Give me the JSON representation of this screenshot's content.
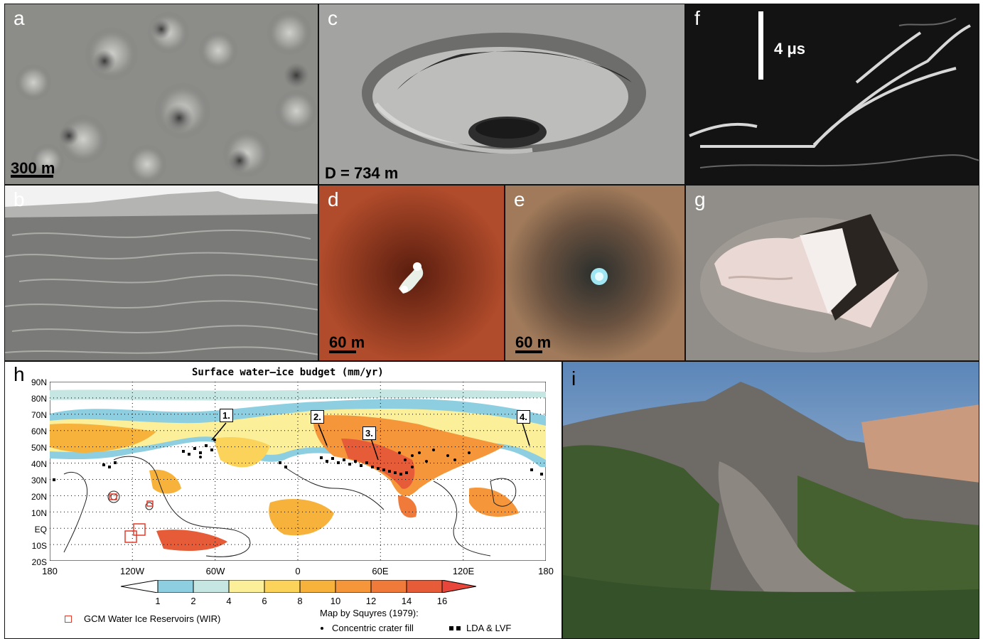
{
  "panels": {
    "a": {
      "label": "a",
      "scale": "300 m"
    },
    "b": {
      "label": "b"
    },
    "c": {
      "label": "c",
      "scale": "D = 734 m"
    },
    "d": {
      "label": "d",
      "scale": "60 m"
    },
    "e": {
      "label": "e",
      "scale": "60 m"
    },
    "f": {
      "label": "f",
      "scale": "4 μs"
    },
    "g": {
      "label": "g"
    },
    "h": {
      "label": "h"
    },
    "i": {
      "label": "i"
    }
  },
  "map": {
    "title": "Surface water–ice budget (mm/yr)",
    "lat_labels": [
      "90N",
      "80N",
      "70N",
      "60N",
      "50N",
      "40N",
      "30N",
      "20N",
      "10N",
      "EQ",
      "10S",
      "20S"
    ],
    "lon_labels": [
      "180",
      "120W",
      "60W",
      "0",
      "60E",
      "120E",
      "180"
    ],
    "colorbar_ticks": [
      "1",
      "2",
      "4",
      "6",
      "8",
      "10",
      "12",
      "14",
      "16"
    ],
    "colorbar_colors": [
      "#8dcfe0",
      "#c5e6e2",
      "#fbef9a",
      "#fbd35a",
      "#f7b23b",
      "#f5963a",
      "#ef7a3a",
      "#e65c38"
    ],
    "callouts": [
      "1.",
      "2.",
      "3.",
      "4."
    ],
    "legend": {
      "wir": "GCM Water Ice Reservoirs (WIR)",
      "map_by": "Map by Squyres (1979):",
      "crater_fill": "Concentric crater fill",
      "lda": "LDA & LVF"
    }
  }
}
